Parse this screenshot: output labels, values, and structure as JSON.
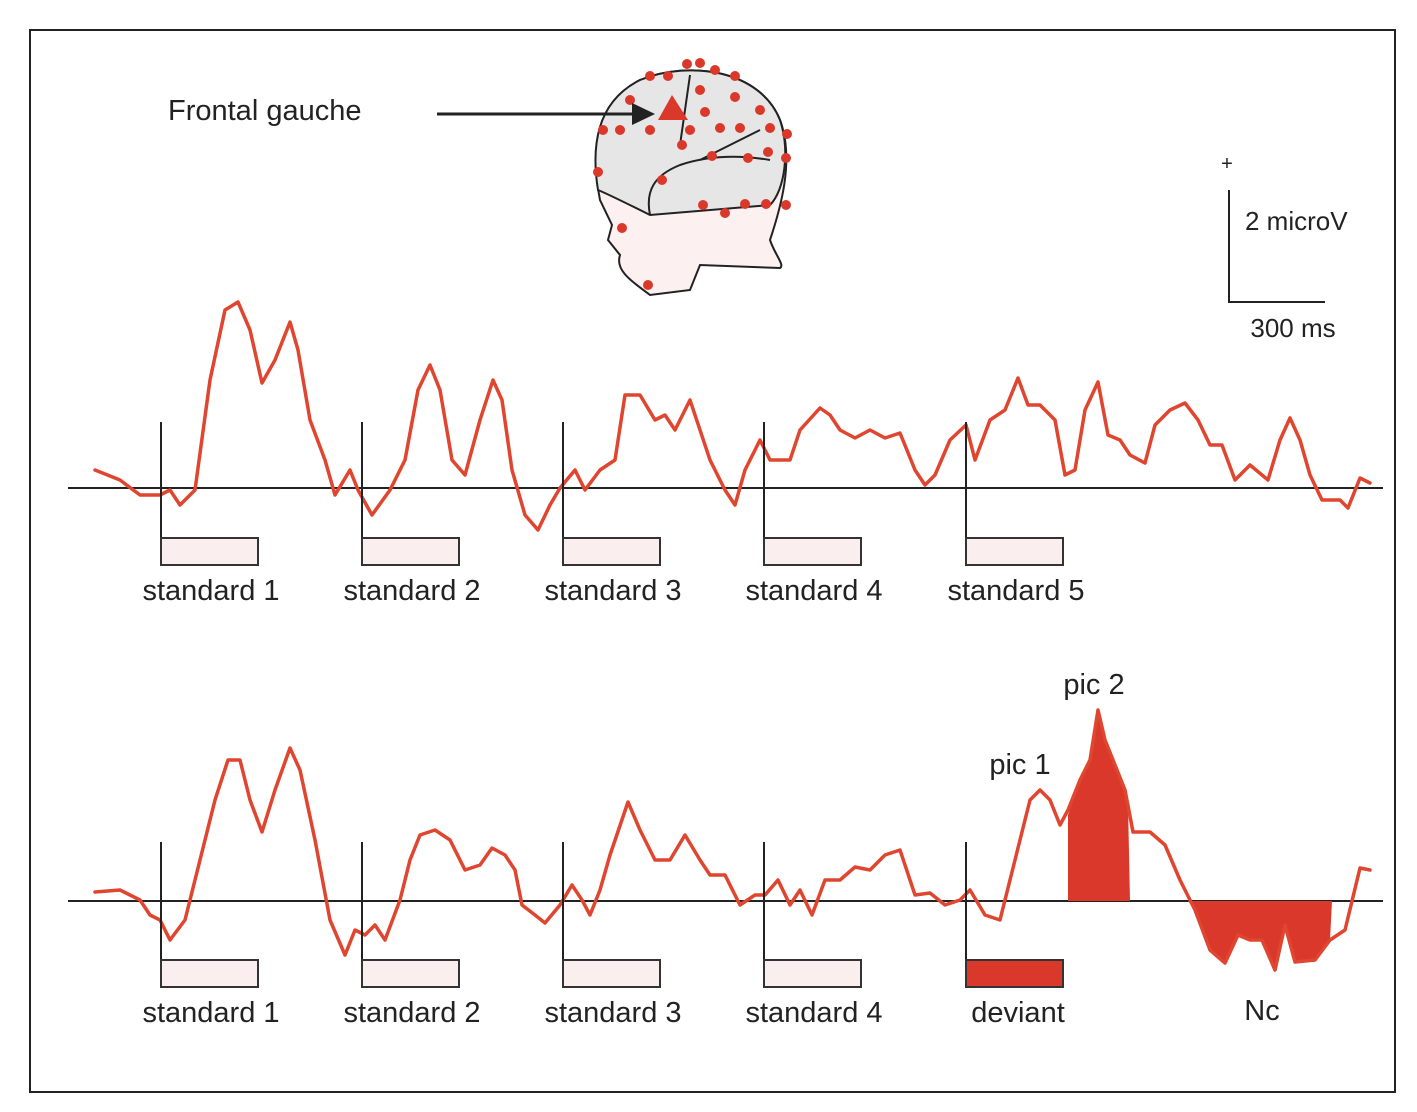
{
  "header": {
    "electrode_label": "Frontal gauche"
  },
  "scale": {
    "polarity": "+",
    "amplitude": "2 microV",
    "time": "300 ms"
  },
  "traces": [
    {
      "stimuli": [
        "standard 1",
        "standard 2",
        "standard 3",
        "standard 4",
        "standard 5"
      ]
    },
    {
      "stimuli": [
        "standard 1",
        "standard 2",
        "standard 3",
        "standard 4",
        "deviant"
      ],
      "annotations": {
        "peak_1": "pic 1",
        "peak_2": "pic 2",
        "nc": "Nc"
      }
    }
  ]
}
